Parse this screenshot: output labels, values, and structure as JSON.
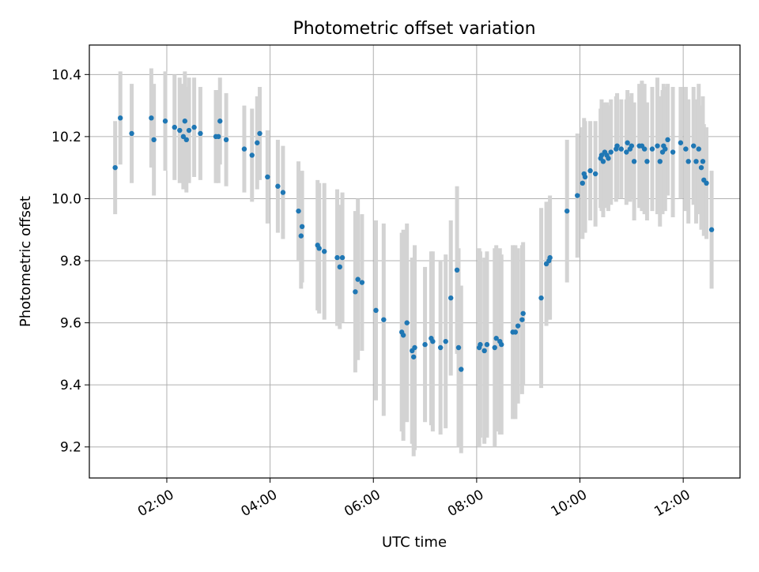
{
  "chart_data": {
    "type": "scatter",
    "title": "Photometric offset variation",
    "xlabel": "UTC time",
    "ylabel": "Photometric offset",
    "grid": true,
    "legend": "none",
    "x_unit": "hours UTC",
    "xlim": [
      0.5,
      13.1
    ],
    "ylim": [
      9.1,
      10.495
    ],
    "x_ticks": [
      {
        "value": 2,
        "label": "02:00"
      },
      {
        "value": 4,
        "label": "04:00"
      },
      {
        "value": 6,
        "label": "06:00"
      },
      {
        "value": 8,
        "label": "08:00"
      },
      {
        "value": 10,
        "label": "10:00"
      },
      {
        "value": 12,
        "label": "12:00"
      }
    ],
    "y_ticks": [
      {
        "value": 9.2,
        "label": "9.2"
      },
      {
        "value": 9.4,
        "label": "9.4"
      },
      {
        "value": 9.6,
        "label": "9.6"
      },
      {
        "value": 9.8,
        "label": "9.8"
      },
      {
        "value": 10.0,
        "label": "10.0"
      },
      {
        "value": 10.2,
        "label": "10.2"
      },
      {
        "value": 10.4,
        "label": "10.4"
      }
    ],
    "colors": {
      "point": "#1f77b4",
      "errorbar": "#d3d3d3",
      "grid": "#b0b0b0"
    },
    "series": [
      {
        "name": "offset",
        "points": [
          [
            1.0,
            10.1,
            0.15
          ],
          [
            1.1,
            10.26,
            0.15
          ],
          [
            1.32,
            10.21,
            0.16
          ],
          [
            1.7,
            10.26,
            0.16
          ],
          [
            1.75,
            10.19,
            0.18
          ],
          [
            1.97,
            10.25,
            0.16
          ],
          [
            2.15,
            10.23,
            0.17
          ],
          [
            2.25,
            10.22,
            0.17
          ],
          [
            2.32,
            10.2,
            0.17
          ],
          [
            2.35,
            10.25,
            0.16
          ],
          [
            2.38,
            10.19,
            0.17
          ],
          [
            2.43,
            10.22,
            0.17
          ],
          [
            2.53,
            10.23,
            0.16
          ],
          [
            2.65,
            10.21,
            0.15
          ],
          [
            2.95,
            10.2,
            0.15
          ],
          [
            3.0,
            10.2,
            0.15
          ],
          [
            3.03,
            10.25,
            0.14
          ],
          [
            3.15,
            10.19,
            0.15
          ],
          [
            3.5,
            10.16,
            0.14
          ],
          [
            3.65,
            10.14,
            0.15
          ],
          [
            3.75,
            10.18,
            0.15
          ],
          [
            3.8,
            10.21,
            0.15
          ],
          [
            3.95,
            10.07,
            0.15
          ],
          [
            4.15,
            10.04,
            0.15
          ],
          [
            4.25,
            10.02,
            0.15
          ],
          [
            4.55,
            9.96,
            0.16
          ],
          [
            4.6,
            9.88,
            0.17
          ],
          [
            4.62,
            9.91,
            0.18
          ],
          [
            4.92,
            9.85,
            0.21
          ],
          [
            4.95,
            9.84,
            0.21
          ],
          [
            5.05,
            9.83,
            0.22
          ],
          [
            5.3,
            9.81,
            0.22
          ],
          [
            5.35,
            9.78,
            0.2
          ],
          [
            5.4,
            9.81,
            0.21
          ],
          [
            5.65,
            9.7,
            0.26
          ],
          [
            5.7,
            9.74,
            0.26
          ],
          [
            5.78,
            9.73,
            0.22
          ],
          [
            6.05,
            9.64,
            0.29
          ],
          [
            6.2,
            9.61,
            0.31
          ],
          [
            6.55,
            9.57,
            0.32
          ],
          [
            6.58,
            9.56,
            0.34
          ],
          [
            6.65,
            9.6,
            0.32
          ],
          [
            6.75,
            9.51,
            0.3
          ],
          [
            6.78,
            9.49,
            0.32
          ],
          [
            6.8,
            9.52,
            0.33
          ],
          [
            7.0,
            9.53,
            0.25
          ],
          [
            7.12,
            9.55,
            0.28
          ],
          [
            7.15,
            9.54,
            0.29
          ],
          [
            7.3,
            9.52,
            0.28
          ],
          [
            7.4,
            9.54,
            0.28
          ],
          [
            7.5,
            9.68,
            0.25
          ],
          [
            7.62,
            9.77,
            0.27
          ],
          [
            7.65,
            9.52,
            0.32
          ],
          [
            7.7,
            9.45,
            0.27
          ],
          [
            8.05,
            9.52,
            0.32
          ],
          [
            8.07,
            9.53,
            0.3
          ],
          [
            8.15,
            9.51,
            0.3
          ],
          [
            8.2,
            9.53,
            0.3
          ],
          [
            8.35,
            9.52,
            0.32
          ],
          [
            8.38,
            9.55,
            0.3
          ],
          [
            8.45,
            9.54,
            0.3
          ],
          [
            8.48,
            9.53,
            0.29
          ],
          [
            8.7,
            9.57,
            0.28
          ],
          [
            8.75,
            9.57,
            0.28
          ],
          [
            8.8,
            9.59,
            0.25
          ],
          [
            8.88,
            9.61,
            0.24
          ],
          [
            8.9,
            9.63,
            0.23
          ],
          [
            9.25,
            9.68,
            0.29
          ],
          [
            9.35,
            9.79,
            0.2
          ],
          [
            9.4,
            9.8,
            0.19
          ],
          [
            9.42,
            9.81,
            0.2
          ],
          [
            9.75,
            9.96,
            0.23
          ],
          [
            9.95,
            10.01,
            0.2
          ],
          [
            10.05,
            10.05,
            0.18
          ],
          [
            10.08,
            10.08,
            0.18
          ],
          [
            10.1,
            10.07,
            0.18
          ],
          [
            10.2,
            10.09,
            0.16
          ],
          [
            10.3,
            10.08,
            0.17
          ],
          [
            10.4,
            10.13,
            0.16
          ],
          [
            10.42,
            10.14,
            0.18
          ],
          [
            10.45,
            10.12,
            0.18
          ],
          [
            10.48,
            10.15,
            0.16
          ],
          [
            10.52,
            10.14,
            0.17
          ],
          [
            10.55,
            10.13,
            0.17
          ],
          [
            10.6,
            10.15,
            0.17
          ],
          [
            10.7,
            10.16,
            0.17
          ],
          [
            10.72,
            10.17,
            0.17
          ],
          [
            10.8,
            10.16,
            0.16
          ],
          [
            10.9,
            10.15,
            0.17
          ],
          [
            10.92,
            10.18,
            0.17
          ],
          [
            10.97,
            10.16,
            0.17
          ],
          [
            11.0,
            10.17,
            0.17
          ],
          [
            11.05,
            10.12,
            0.19
          ],
          [
            11.15,
            10.17,
            0.2
          ],
          [
            11.2,
            10.17,
            0.21
          ],
          [
            11.25,
            10.16,
            0.21
          ],
          [
            11.3,
            10.12,
            0.19
          ],
          [
            11.4,
            10.16,
            0.2
          ],
          [
            11.5,
            10.17,
            0.22
          ],
          [
            11.55,
            10.12,
            0.21
          ],
          [
            11.6,
            10.15,
            0.2
          ],
          [
            11.62,
            10.17,
            0.2
          ],
          [
            11.65,
            10.16,
            0.2
          ],
          [
            11.7,
            10.19,
            0.18
          ],
          [
            11.8,
            10.15,
            0.21
          ],
          [
            11.95,
            10.18,
            0.18
          ],
          [
            12.05,
            10.16,
            0.2
          ],
          [
            12.1,
            10.12,
            0.2
          ],
          [
            12.2,
            10.17,
            0.19
          ],
          [
            12.25,
            10.12,
            0.2
          ],
          [
            12.3,
            10.16,
            0.21
          ],
          [
            12.35,
            10.1,
            0.2
          ],
          [
            12.38,
            10.12,
            0.21
          ],
          [
            12.4,
            10.06,
            0.18
          ],
          [
            12.45,
            10.05,
            0.18
          ],
          [
            12.55,
            9.9,
            0.19
          ]
        ]
      }
    ]
  }
}
